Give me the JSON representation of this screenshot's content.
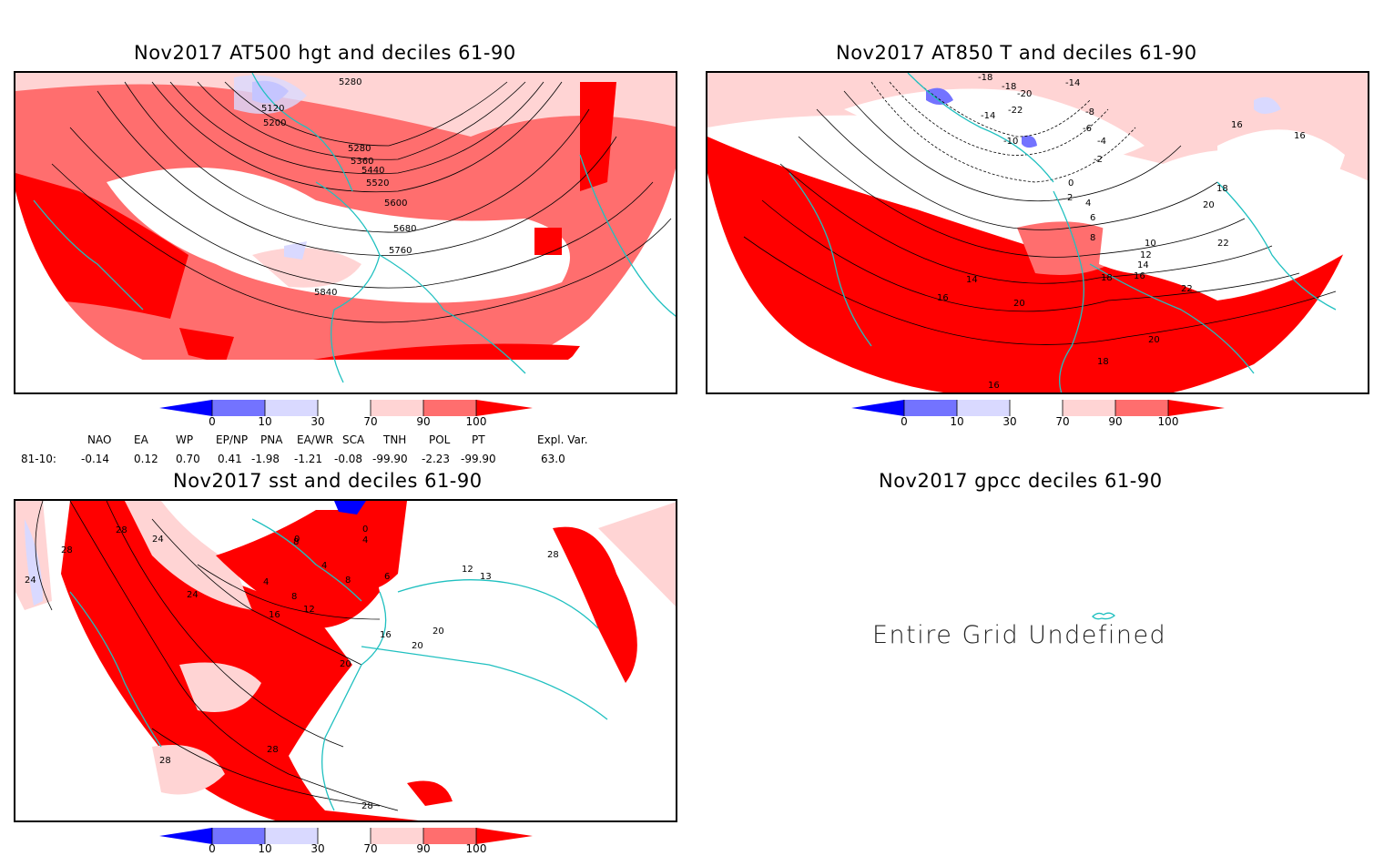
{
  "panels": {
    "hgt": {
      "title": "Nov2017 AT500 hgt and deciles 61-90",
      "labels": [
        "5280",
        "5120",
        "5200",
        "5280",
        "5360",
        "5440",
        "5520",
        "5600",
        "5680",
        "5760",
        "5840"
      ]
    },
    "t850": {
      "title": "Nov2017 AT850 T and deciles 61-90",
      "labels": [
        "-18",
        "-18",
        "-20",
        "-14",
        "-8",
        "-6",
        "-14",
        "-22",
        "-10",
        "-4",
        "-2",
        "0",
        "2",
        "4",
        "6",
        "8",
        "10",
        "12",
        "14",
        "16",
        "18",
        "16",
        "18",
        "16",
        "20",
        "22",
        "22",
        "20",
        "20",
        "14",
        "16",
        "18",
        "16"
      ]
    },
    "sst": {
      "title": "Nov2017 sst and deciles 61-90",
      "labels": [
        "28",
        "24",
        "28",
        "24",
        "24",
        "8",
        "0",
        "4",
        "0",
        "4",
        "8",
        "6",
        "4",
        "8",
        "12",
        "16",
        "16",
        "20",
        "20",
        "20",
        "12",
        "13",
        "28",
        "28",
        "28",
        "28"
      ]
    },
    "gpcc": {
      "title": "Nov2017 gpcc deciles 61-90",
      "message": "Entire Grid Undefined"
    }
  },
  "colorbar": {
    "ticks": [
      "0",
      "10",
      "30",
      "70",
      "90",
      "100"
    ],
    "colors": [
      "#0000ff",
      "#7373ff",
      "#d9d9ff",
      "#ffffff",
      "#ffd4d4",
      "#ff6e6e",
      "#ff0000"
    ]
  },
  "indices": {
    "period": "81-10:",
    "names": [
      "NAO",
      "EA",
      "WP",
      "EP/NP",
      "PNA",
      "EA/WR",
      "SCA",
      "TNH",
      "POL",
      "PT",
      "Expl. Var."
    ],
    "values": [
      "-0.14",
      "0.12",
      "0.70",
      "0.41",
      "-1.98",
      "-1.21",
      "-0.08",
      "-99.90",
      "-2.23",
      "-99.90",
      "63.0"
    ]
  },
  "colors": {
    "coast": "#20c0c0",
    "red": "#ff0000",
    "mid_red": "#ff6e6e",
    "light_red": "#ffd4d4"
  }
}
